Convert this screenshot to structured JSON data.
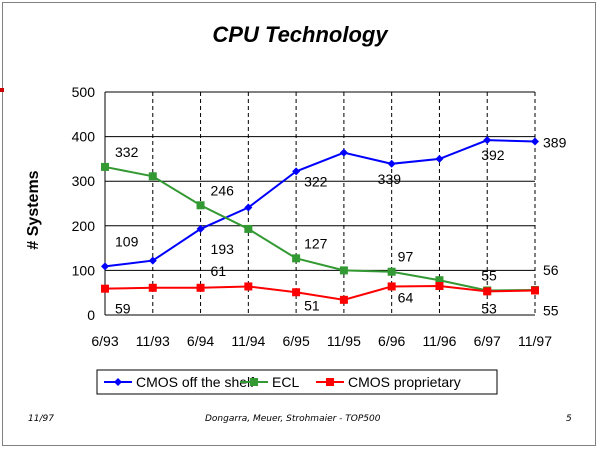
{
  "chart_data": {
    "type": "line",
    "title": "CPU Technology",
    "ylabel": "# Systems",
    "xlabel": "",
    "categories": [
      "6/93",
      "11/93",
      "6/94",
      "11/94",
      "6/95",
      "11/95",
      "6/96",
      "11/96",
      "6/97",
      "11/97"
    ],
    "ylim": [
      0,
      500
    ],
    "yticks": [
      0,
      100,
      200,
      300,
      400,
      500
    ],
    "grid": "horizontal and vertical dashed",
    "legend": "bottom",
    "series": [
      {
        "name": "CMOS off the shelf",
        "color": "#0000ff",
        "marker": "diamond",
        "values": [
          109,
          122,
          193,
          241,
          322,
          364,
          339,
          350,
          392,
          389
        ]
      },
      {
        "name": "ECL",
        "color": "#339933",
        "marker": "square",
        "values": [
          332,
          311,
          246,
          193,
          127,
          100,
          97,
          78,
          55,
          56
        ]
      },
      {
        "name": "CMOS proprietary",
        "color": "#ff0000",
        "marker": "square",
        "values": [
          59,
          61,
          61,
          64,
          51,
          34,
          64,
          65,
          53,
          55
        ]
      }
    ],
    "data_labels": [
      {
        "series": 1,
        "index": 0,
        "text": "332"
      },
      {
        "series": 0,
        "index": 0,
        "text": "109"
      },
      {
        "series": 2,
        "index": 0,
        "text": "59"
      },
      {
        "series": 1,
        "index": 2,
        "text": "246"
      },
      {
        "series": 0,
        "index": 2,
        "text": "193"
      },
      {
        "series": 2,
        "index": 2,
        "text": "61"
      },
      {
        "series": 0,
        "index": 4,
        "text": "322"
      },
      {
        "series": 1,
        "index": 4,
        "text": "127"
      },
      {
        "series": 2,
        "index": 4,
        "text": "51"
      },
      {
        "series": 0,
        "index": 6,
        "text": "339"
      },
      {
        "series": 1,
        "index": 6,
        "text": "97"
      },
      {
        "series": 2,
        "index": 6,
        "text": "64"
      },
      {
        "series": 0,
        "index": 8,
        "text": "392"
      },
      {
        "series": 1,
        "index": 8,
        "text": "55"
      },
      {
        "series": 2,
        "index": 8,
        "text": "53"
      },
      {
        "series": 0,
        "index": 9,
        "text": "389"
      },
      {
        "series": 1,
        "index": 9,
        "text": "56"
      },
      {
        "series": 2,
        "index": 9,
        "text": "55"
      }
    ]
  },
  "footer": {
    "date": "11/97",
    "authors": "Dongarra, Meuer, Strohmaier - TOP500",
    "page": "5"
  }
}
